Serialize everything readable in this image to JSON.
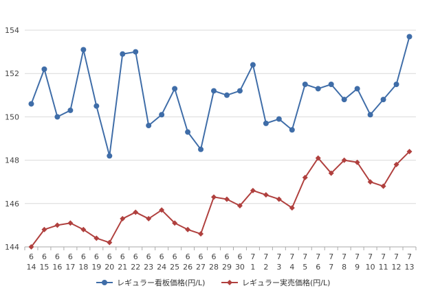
{
  "chart_data": {
    "type": "line",
    "title": "",
    "xlabel": "",
    "ylabel": "",
    "ylim": [
      144,
      154
    ],
    "yticks": [
      144,
      146,
      148,
      150,
      152,
      154
    ],
    "grid": true,
    "legend_position": "bottom",
    "categories": [
      {
        "month": "6",
        "day": "14"
      },
      {
        "month": "6",
        "day": "15"
      },
      {
        "month": "6",
        "day": "16"
      },
      {
        "month": "6",
        "day": "17"
      },
      {
        "month": "6",
        "day": "18"
      },
      {
        "month": "6",
        "day": "19"
      },
      {
        "month": "6",
        "day": "20"
      },
      {
        "month": "6",
        "day": "21"
      },
      {
        "month": "6",
        "day": "22"
      },
      {
        "month": "6",
        "day": "23"
      },
      {
        "month": "6",
        "day": "24"
      },
      {
        "month": "6",
        "day": "25"
      },
      {
        "month": "6",
        "day": "26"
      },
      {
        "month": "6",
        "day": "27"
      },
      {
        "month": "6",
        "day": "28"
      },
      {
        "month": "6",
        "day": "29"
      },
      {
        "month": "6",
        "day": "30"
      },
      {
        "month": "7",
        "day": "1"
      },
      {
        "month": "7",
        "day": "2"
      },
      {
        "month": "7",
        "day": "3"
      },
      {
        "month": "7",
        "day": "4"
      },
      {
        "month": "7",
        "day": "5"
      },
      {
        "month": "7",
        "day": "6"
      },
      {
        "month": "7",
        "day": "7"
      },
      {
        "month": "7",
        "day": "8"
      },
      {
        "month": "7",
        "day": "9"
      },
      {
        "month": "7",
        "day": "10"
      },
      {
        "month": "7",
        "day": "11"
      },
      {
        "month": "7",
        "day": "12"
      },
      {
        "month": "7",
        "day": "13"
      }
    ],
    "series": [
      {
        "name": "レギュラー看板価格(円/L)",
        "color": "#3f6da8",
        "marker": "circle",
        "values": [
          150.6,
          152.2,
          150.0,
          150.3,
          153.1,
          150.5,
          148.2,
          152.9,
          153.0,
          149.6,
          150.1,
          151.3,
          149.3,
          148.5,
          151.2,
          151.0,
          151.2,
          152.4,
          149.7,
          149.9,
          149.4,
          151.5,
          151.3,
          151.5,
          150.8,
          151.3,
          150.1,
          150.8,
          151.5,
          153.7
        ]
      },
      {
        "name": "レギュラー実売価格(円/L)",
        "color": "#b0403e",
        "marker": "diamond",
        "values": [
          144.0,
          144.8,
          145.0,
          145.1,
          144.8,
          144.4,
          144.2,
          145.3,
          145.6,
          145.3,
          145.7,
          145.1,
          144.8,
          144.6,
          146.3,
          146.2,
          145.9,
          146.6,
          146.4,
          146.2,
          145.8,
          147.2,
          148.1,
          147.4,
          148.0,
          147.9,
          147.0,
          146.8,
          147.8,
          148.4
        ]
      }
    ]
  }
}
